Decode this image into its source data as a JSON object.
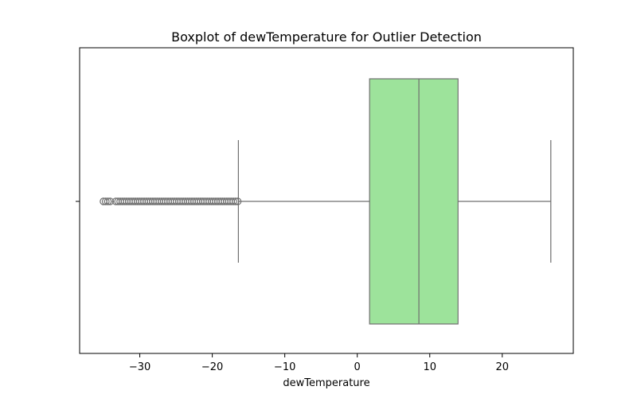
{
  "chart_data": {
    "type": "boxplot",
    "orientation": "horizontal",
    "title": "Boxplot of dewTemperature for Outlier Detection",
    "xlabel": "dewTemperature",
    "ylabel": "",
    "xlim": [
      -38.3,
      29.8
    ],
    "x_ticks": [
      -30,
      -20,
      -10,
      0,
      10,
      20
    ],
    "x_tick_labels": [
      "−30",
      "−20",
      "−10",
      "0",
      "10",
      "20"
    ],
    "grid": false,
    "box": {
      "q1": 1.7,
      "median": 8.5,
      "q3": 13.9,
      "whisker_low": -16.4,
      "whisker_high": 26.7,
      "fill_color": "#9de39b",
      "line_color": "#6f6f6f"
    },
    "outliers_low": [
      -35.0,
      -34.7,
      -34.4,
      -34.1,
      -33.3,
      -33.0,
      -32.7,
      -32.4,
      -32.1,
      -31.8,
      -31.5,
      -31.2,
      -30.9,
      -30.6,
      -30.3,
      -30.0,
      -29.7,
      -29.4,
      -29.1,
      -28.8,
      -28.5,
      -28.2,
      -27.9,
      -27.6,
      -27.3,
      -27.0,
      -26.7,
      -26.4,
      -26.1,
      -25.8,
      -25.5,
      -25.2,
      -24.9,
      -24.6,
      -24.3,
      -24.0,
      -23.7,
      -23.4,
      -23.1,
      -22.8,
      -22.5,
      -22.2,
      -21.9,
      -21.6,
      -21.3,
      -21.0,
      -20.7,
      -20.4,
      -20.1,
      -19.8,
      -19.5,
      -19.2,
      -18.9,
      -18.6,
      -18.3,
      -18.0,
      -17.7,
      -17.4,
      -17.1,
      -16.8,
      -16.5
    ],
    "outlier_color": "#6f6f6f"
  }
}
